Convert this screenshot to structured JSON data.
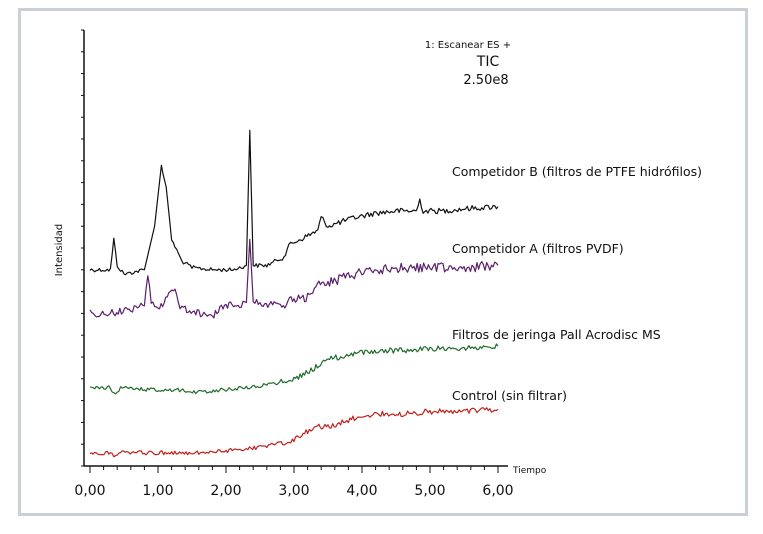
{
  "chart_data": {
    "type": "line",
    "title": "",
    "xlabel": "Tiempo",
    "ylabel": "Intensidad",
    "xlim": [
      0,
      6
    ],
    "x_ticks": [
      "0,00",
      "1,00",
      "2,00",
      "3,00",
      "4,00",
      "5,00",
      "6,00"
    ],
    "header": {
      "scan": "1: Escanear ES +",
      "mode": "TIC",
      "scale": "2.50e8"
    },
    "ylim": [
      0,
      1
    ],
    "series": [
      {
        "name": "Competidor B (filtros de PTFE hidrófilos)",
        "color": "#111111",
        "x": [
          0.0,
          0.3,
          0.35,
          0.4,
          0.5,
          0.8,
          0.95,
          1.05,
          1.12,
          1.2,
          1.35,
          1.5,
          1.8,
          2.1,
          2.3,
          2.35,
          2.4,
          2.6,
          2.85,
          2.95,
          3.1,
          3.35,
          3.4,
          3.5,
          3.7,
          3.9,
          4.2,
          4.5,
          4.8,
          4.85,
          4.9,
          5.2,
          5.5,
          6.0
        ],
        "y": [
          0.45,
          0.45,
          0.52,
          0.46,
          0.44,
          0.45,
          0.55,
          0.69,
          0.64,
          0.52,
          0.47,
          0.455,
          0.45,
          0.45,
          0.46,
          0.77,
          0.46,
          0.46,
          0.48,
          0.51,
          0.52,
          0.54,
          0.57,
          0.55,
          0.56,
          0.57,
          0.58,
          0.585,
          0.585,
          0.61,
          0.585,
          0.585,
          0.59,
          0.595
        ]
      },
      {
        "name": "Competidor A (filtros PVDF)",
        "color": "#5a1f6b",
        "x": [
          0.0,
          0.3,
          0.6,
          0.8,
          0.85,
          0.9,
          1.0,
          1.25,
          1.3,
          1.4,
          1.6,
          1.8,
          2.0,
          2.2,
          2.3,
          2.35,
          2.4,
          2.5,
          2.8,
          3.0,
          3.2,
          3.3,
          3.5,
          3.8,
          4.0,
          4.3,
          4.6,
          5.0,
          5.5,
          6.0
        ],
        "y": [
          0.35,
          0.35,
          0.36,
          0.37,
          0.44,
          0.38,
          0.36,
          0.41,
          0.37,
          0.36,
          0.35,
          0.345,
          0.37,
          0.37,
          0.375,
          0.52,
          0.38,
          0.37,
          0.37,
          0.38,
          0.39,
          0.41,
          0.42,
          0.435,
          0.445,
          0.45,
          0.455,
          0.455,
          0.455,
          0.46
        ]
      },
      {
        "name": "Filtros de jeringa Pall Acrodisc MS",
        "color": "#1f6b2a",
        "x": [
          0.0,
          0.3,
          0.35,
          0.45,
          0.8,
          1.2,
          1.6,
          2.0,
          2.3,
          2.6,
          3.0,
          3.2,
          3.3,
          3.5,
          3.8,
          4.0,
          4.3,
          4.6,
          5.0,
          5.5,
          6.0
        ],
        "y": [
          0.18,
          0.18,
          0.165,
          0.18,
          0.175,
          0.175,
          0.17,
          0.175,
          0.18,
          0.185,
          0.2,
          0.215,
          0.225,
          0.245,
          0.255,
          0.26,
          0.265,
          0.265,
          0.27,
          0.27,
          0.275
        ]
      },
      {
        "name": "Control (sin filtrar)",
        "color": "#c0201c",
        "x": [
          0.0,
          0.3,
          0.35,
          0.45,
          0.8,
          1.2,
          1.6,
          2.0,
          2.3,
          2.6,
          3.0,
          3.2,
          3.3,
          3.5,
          3.8,
          4.0,
          4.3,
          4.6,
          5.0,
          5.5,
          6.0
        ],
        "y": [
          0.03,
          0.03,
          0.02,
          0.03,
          0.03,
          0.03,
          0.03,
          0.035,
          0.04,
          0.045,
          0.06,
          0.08,
          0.09,
          0.09,
          0.105,
          0.115,
          0.12,
          0.12,
          0.125,
          0.125,
          0.13
        ]
      }
    ]
  }
}
